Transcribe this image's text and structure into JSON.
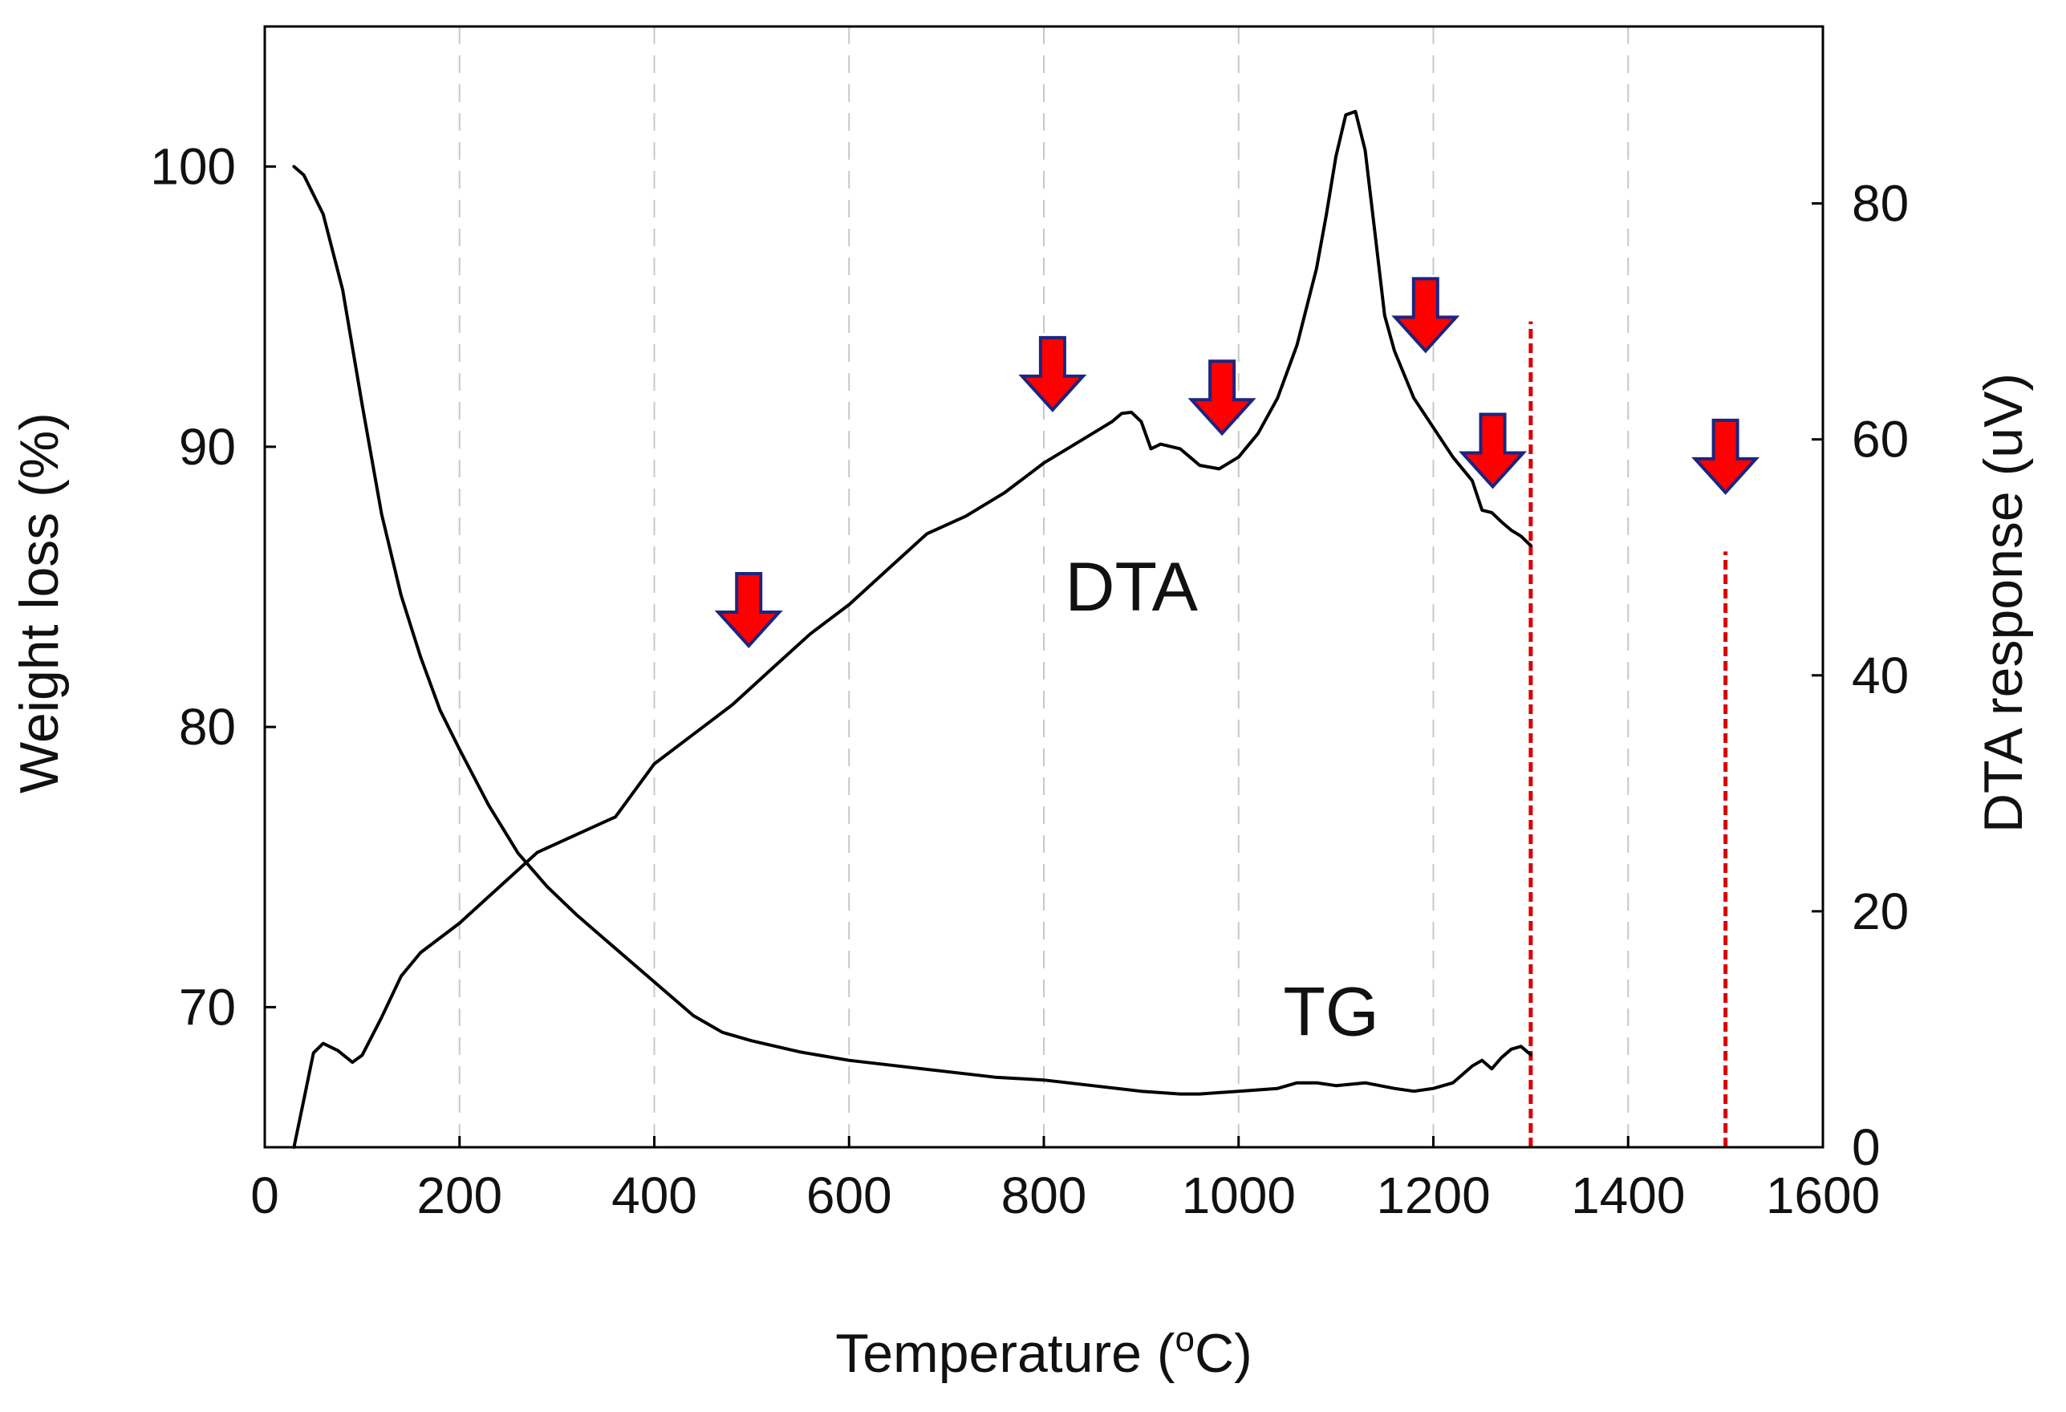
{
  "chart_data": {
    "type": "line",
    "title": "",
    "xlabel": {
      "main": "Temperature (",
      "sup": "o",
      "unit": "C)"
    },
    "ylabel_left": "Weight loss (%)",
    "ylabel_right": "DTA response (uV)",
    "xlim": [
      0,
      1600
    ],
    "ylim_left": [
      65,
      105
    ],
    "ylim_right": [
      0,
      95
    ],
    "x_ticks": [
      "0",
      "200",
      "400",
      "600",
      "800",
      "1000",
      "1200",
      "1400",
      "1600"
    ],
    "x_tick_values": [
      0,
      200,
      400,
      600,
      800,
      1000,
      1200,
      1400,
      1600
    ],
    "y_left_ticks": [
      "70",
      "80",
      "90",
      "100"
    ],
    "y_left_tick_values": [
      70,
      80,
      90,
      100
    ],
    "y_right_ticks": [
      "0",
      "20",
      "40",
      "60",
      "80"
    ],
    "y_right_tick_values": [
      0,
      20,
      40,
      60,
      80
    ],
    "grid": {
      "vertical_dashed_at": [
        200,
        400,
        600,
        800,
        1000,
        1200,
        1400
      ]
    },
    "series": [
      {
        "name": "TG",
        "axis": "left",
        "label": "TG",
        "label_at": [
          1095,
          69
        ],
        "x": [
          30,
          40,
          60,
          80,
          100,
          120,
          140,
          160,
          180,
          200,
          230,
          260,
          290,
          320,
          350,
          380,
          410,
          440,
          470,
          500,
          550,
          600,
          650,
          700,
          750,
          800,
          850,
          900,
          940,
          960,
          1000,
          1040,
          1060,
          1080,
          1100,
          1130,
          1160,
          1180,
          1200,
          1220,
          1240,
          1250,
          1260,
          1270,
          1280,
          1290,
          1300
        ],
        "y": [
          100.0,
          99.7,
          98.3,
          95.6,
          91.5,
          87.6,
          84.7,
          82.5,
          80.6,
          79.2,
          77.2,
          75.5,
          74.3,
          73.3,
          72.4,
          71.5,
          70.6,
          69.7,
          69.1,
          68.8,
          68.4,
          68.1,
          67.9,
          67.7,
          67.5,
          67.4,
          67.2,
          67.0,
          66.9,
          66.9,
          67.0,
          67.1,
          67.3,
          67.3,
          67.2,
          67.3,
          67.1,
          67.0,
          67.1,
          67.3,
          67.9,
          68.1,
          67.8,
          68.2,
          68.5,
          68.6,
          68.3
        ]
      },
      {
        "name": "DTA",
        "axis": "right",
        "label": "DTA",
        "label_at": [
          890,
          45.5
        ],
        "x": [
          30,
          40,
          50,
          60,
          75,
          90,
          100,
          120,
          140,
          160,
          200,
          240,
          280,
          320,
          360,
          400,
          440,
          480,
          520,
          560,
          600,
          640,
          680,
          720,
          760,
          800,
          840,
          870,
          880,
          890,
          900,
          910,
          920,
          940,
          950,
          960,
          980,
          1000,
          1020,
          1040,
          1060,
          1080,
          1090,
          1100,
          1110,
          1120,
          1130,
          1140,
          1150,
          1160,
          1180,
          1200,
          1220,
          1240,
          1250,
          1260,
          1270,
          1280,
          1290,
          1300
        ],
        "y": [
          0,
          4,
          8,
          8.8,
          8.2,
          7.2,
          7.8,
          11,
          14.5,
          16.5,
          19,
          22,
          25,
          26.5,
          28,
          32.5,
          35,
          37.5,
          40.5,
          43.5,
          46,
          49,
          52,
          53.5,
          55.5,
          58,
          60,
          61.5,
          62.2,
          62.3,
          61.5,
          59.2,
          59.6,
          59.2,
          58.5,
          57.8,
          57.5,
          58.5,
          60.5,
          63.5,
          68,
          74.5,
          79,
          84,
          87.5,
          87.8,
          84.5,
          77.5,
          70.5,
          67.5,
          63.5,
          61,
          58.5,
          56.5,
          54,
          53.8,
          53,
          52.3,
          51.8,
          51
        ]
      }
    ],
    "markers": {
      "color": "#ff0000",
      "outline": "#1b2580",
      "arrows": [
        {
          "x": 497,
          "y_right": 42.5
        },
        {
          "x": 809,
          "y_right": 62.5
        },
        {
          "x": 983,
          "y_right": 60.5
        },
        {
          "x": 1192,
          "y_right": 67.5
        },
        {
          "x": 1261,
          "y_right": 56
        },
        {
          "x": 1500,
          "y_right": 55.5
        }
      ],
      "red_dashed_lines": [
        {
          "x": 1300,
          "from_right": 0,
          "to_right": 70
        },
        {
          "x": 1500,
          "from_right": 0,
          "to_right": 50.5
        }
      ]
    }
  }
}
